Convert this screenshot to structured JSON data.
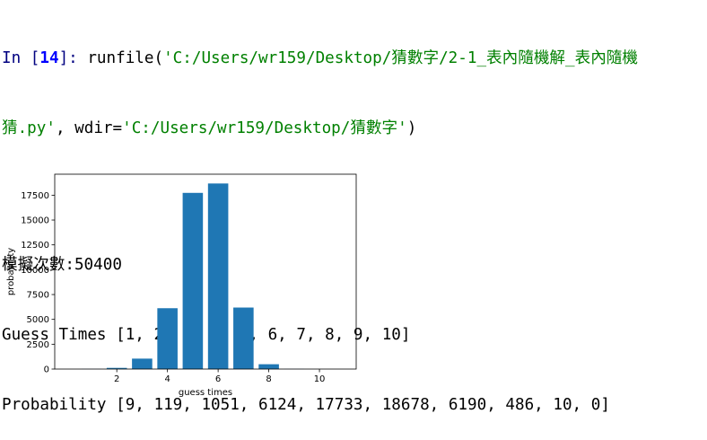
{
  "console": {
    "prompt_in": "In [",
    "prompt_number": "14",
    "prompt_close": "]: ",
    "command_func": "runfile(",
    "command_path": "'C:/Users/wr159/Desktop/猜數字/2-1_表內隨機解_表內隨機",
    "command_path_cont": "猜.py'",
    "command_sep": ", wdir=",
    "command_wdir": "'C:/Users/wr159/Desktop/猜數字'",
    "command_close": ")",
    "output_line1": "模擬次數:50400",
    "output_line2": "Guess Times [1, 2, 3, 4, 5, 6, 7, 8, 9, 10]",
    "output_line3": "Probability [9, 119, 1051, 6124, 17733, 18678, 6190, 486, 10, 0]"
  },
  "chart_data": {
    "type": "bar",
    "x": [
      1,
      2,
      3,
      4,
      5,
      6,
      7,
      8,
      9,
      10
    ],
    "values": [
      9,
      119,
      1051,
      6124,
      17733,
      18678,
      6190,
      486,
      10,
      0
    ],
    "xlabel": "guess times",
    "ylabel": "probability",
    "xticks": [
      2,
      4,
      6,
      8,
      10
    ],
    "yticks": [
      0,
      2500,
      5000,
      7500,
      10000,
      12500,
      15000,
      17500
    ],
    "xlim": [
      -0.45,
      11.45
    ],
    "ylim": [
      0,
      19612
    ],
    "bar_color": "#1f77b4",
    "grid": false
  }
}
